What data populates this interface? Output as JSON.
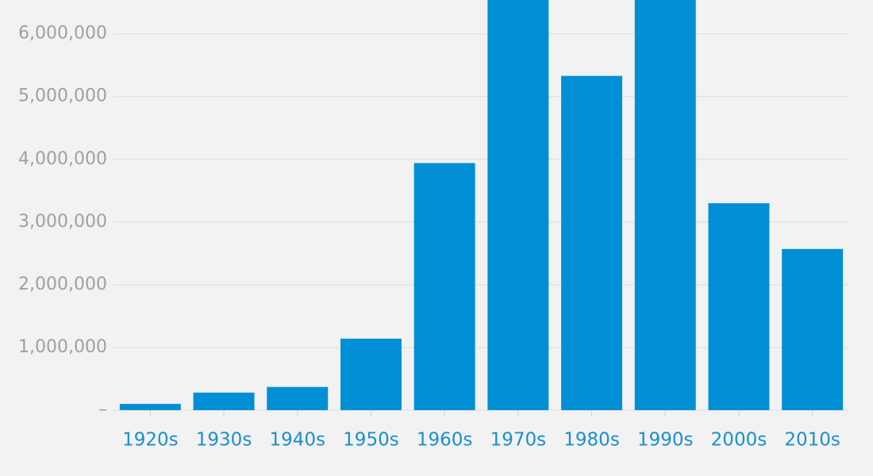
{
  "chart_data": {
    "type": "bar",
    "categories": [
      "1920s",
      "1930s",
      "1940s",
      "1950s",
      "1960s",
      "1970s",
      "1980s",
      "1990s",
      "2000s",
      "2010s"
    ],
    "values": [
      100000,
      280000,
      370000,
      1140000,
      3940000,
      6600000,
      5330000,
      6600000,
      3300000,
      2570000
    ],
    "color": "#008fd5",
    "ylim": [
      0,
      6540000
    ],
    "yticks": [
      {
        "value": 0,
        "label": "–"
      },
      {
        "value": 1000000,
        "label": "1,000,000"
      },
      {
        "value": 2000000,
        "label": "2,000,000"
      },
      {
        "value": 3000000,
        "label": "3,000,000"
      },
      {
        "value": 4000000,
        "label": "4,000,000"
      },
      {
        "value": 5000000,
        "label": "5,000,000"
      },
      {
        "value": 6000000,
        "label": "6,000,000"
      }
    ],
    "grid": true
  }
}
